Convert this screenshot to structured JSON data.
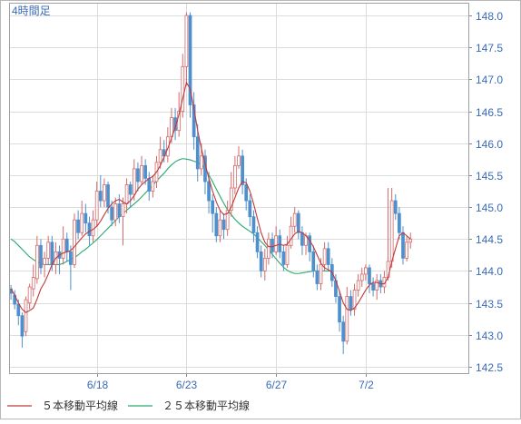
{
  "timeframe_label": "4時間足",
  "legend": [
    {
      "label": "５本移動平均線",
      "color": "#c0393b"
    },
    {
      "label": "２５本移動平均線",
      "color": "#2aa870"
    }
  ],
  "colors": {
    "up": "#d36a6a",
    "down": "#4f90cc",
    "ma5": "#c0393b",
    "ma25": "#2aa870",
    "grid": "#dcdcdc",
    "label": "#3a6ab5"
  },
  "chart_data": {
    "type": "candlestick",
    "title": "",
    "xlabel": "",
    "ylabel": "",
    "ylim": [
      142.4,
      148.2
    ],
    "y_ticks": [
      142.5,
      143.0,
      143.5,
      144.0,
      144.5,
      145.0,
      145.5,
      146.0,
      146.5,
      147.0,
      147.5,
      148.0
    ],
    "x_ticks": [
      {
        "label": "6/18",
        "index": 23
      },
      {
        "label": "6/23",
        "index": 47
      },
      {
        "label": "6/27",
        "index": 71
      },
      {
        "label": "7/2",
        "index": 95
      }
    ],
    "n_bars": 123,
    "grid": true,
    "candles": [
      [
        143.72,
        143.65,
        143.78,
        143.55
      ],
      [
        143.62,
        143.48,
        143.7,
        143.4
      ],
      [
        143.48,
        143.3,
        143.55,
        143.15
      ],
      [
        143.3,
        142.98,
        143.35,
        142.8
      ],
      [
        143.05,
        143.55,
        143.6,
        142.98
      ],
      [
        143.5,
        143.75,
        143.8,
        143.4
      ],
      [
        143.72,
        143.9,
        144.1,
        143.6
      ],
      [
        143.88,
        144.4,
        144.55,
        143.8
      ],
      [
        144.4,
        144.05,
        144.5,
        143.95
      ],
      [
        144.1,
        144.2,
        144.3,
        143.9
      ],
      [
        144.2,
        144.45,
        144.55,
        144.1
      ],
      [
        144.45,
        144.1,
        144.55,
        144.0
      ],
      [
        144.1,
        144.3,
        144.45,
        143.95
      ],
      [
        144.3,
        144.2,
        144.4,
        143.95
      ],
      [
        144.2,
        144.5,
        144.7,
        144.1
      ],
      [
        144.5,
        144.3,
        144.6,
        144.15
      ],
      [
        144.3,
        144.1,
        144.4,
        143.7
      ],
      [
        144.1,
        144.8,
        144.9,
        144.05
      ],
      [
        144.8,
        144.6,
        144.95,
        144.5
      ],
      [
        144.6,
        144.9,
        145.1,
        144.55
      ],
      [
        144.9,
        144.75,
        145.05,
        144.6
      ],
      [
        144.75,
        144.55,
        144.85,
        144.4
      ],
      [
        144.55,
        144.8,
        144.95,
        144.45
      ],
      [
        144.8,
        145.25,
        145.4,
        144.7
      ],
      [
        145.25,
        145.1,
        145.5,
        145.0
      ],
      [
        145.1,
        145.35,
        145.45,
        145.0
      ],
      [
        145.35,
        145.0,
        145.4,
        144.9
      ],
      [
        145.0,
        144.8,
        145.1,
        144.7
      ],
      [
        144.8,
        145.05,
        145.15,
        144.7
      ],
      [
        145.05,
        144.85,
        145.2,
        144.75
      ],
      [
        144.85,
        145.05,
        145.15,
        144.4
      ],
      [
        145.05,
        145.35,
        145.45,
        144.9
      ],
      [
        145.35,
        145.2,
        145.4,
        145.0
      ],
      [
        145.2,
        145.6,
        145.75,
        145.1
      ],
      [
        145.6,
        145.4,
        145.7,
        145.25
      ],
      [
        145.4,
        145.65,
        145.8,
        145.35
      ],
      [
        145.65,
        145.45,
        145.75,
        145.35
      ],
      [
        145.45,
        145.25,
        145.55,
        145.1
      ],
      [
        145.25,
        145.4,
        145.5,
        145.15
      ],
      [
        145.4,
        145.7,
        145.8,
        145.3
      ],
      [
        145.7,
        145.9,
        146.1,
        145.6
      ],
      [
        145.9,
        145.8,
        146.05,
        145.7
      ],
      [
        145.8,
        146.1,
        146.25,
        145.7
      ],
      [
        146.1,
        146.4,
        146.55,
        146.0
      ],
      [
        146.4,
        146.2,
        146.55,
        146.05
      ],
      [
        146.2,
        146.5,
        146.8,
        146.1
      ],
      [
        146.5,
        147.2,
        147.4,
        146.4
      ],
      [
        147.2,
        148.0,
        148.05,
        146.9
      ],
      [
        148.0,
        146.6,
        148.05,
        146.4
      ],
      [
        146.6,
        146.1,
        146.8,
        145.9
      ],
      [
        146.1,
        145.6,
        146.3,
        145.4
      ],
      [
        145.6,
        145.8,
        146.0,
        145.5
      ],
      [
        145.8,
        145.4,
        145.9,
        145.2
      ],
      [
        145.4,
        145.1,
        145.55,
        144.9
      ],
      [
        145.1,
        144.9,
        145.2,
        144.6
      ],
      [
        144.9,
        144.55,
        145.0,
        144.45
      ],
      [
        144.55,
        144.8,
        144.95,
        144.45
      ],
      [
        144.8,
        144.65,
        144.9,
        144.5
      ],
      [
        144.65,
        144.95,
        145.1,
        144.55
      ],
      [
        144.95,
        145.3,
        145.55,
        144.85
      ],
      [
        145.3,
        145.65,
        145.8,
        145.2
      ],
      [
        145.65,
        145.8,
        145.95,
        145.6
      ],
      [
        145.8,
        145.35,
        145.9,
        145.2
      ],
      [
        145.35,
        145.1,
        145.45,
        144.95
      ],
      [
        145.1,
        144.85,
        145.2,
        144.7
      ],
      [
        144.85,
        144.6,
        144.95,
        144.45
      ],
      [
        144.6,
        144.3,
        144.7,
        144.2
      ],
      [
        144.3,
        144.0,
        144.4,
        143.9
      ],
      [
        144.0,
        144.2,
        144.35,
        143.85
      ],
      [
        144.2,
        144.5,
        144.6,
        144.1
      ],
      [
        144.5,
        144.3,
        144.6,
        144.2
      ],
      [
        144.3,
        144.55,
        144.7,
        144.25
      ],
      [
        144.55,
        144.3,
        144.65,
        144.2
      ],
      [
        144.3,
        144.1,
        144.4,
        144.0
      ],
      [
        144.1,
        144.4,
        144.55,
        144.05
      ],
      [
        144.4,
        144.7,
        144.85,
        144.35
      ],
      [
        144.7,
        144.9,
        145.0,
        144.6
      ],
      [
        144.9,
        144.6,
        144.95,
        144.5
      ],
      [
        144.6,
        144.4,
        144.7,
        144.25
      ],
      [
        144.4,
        144.55,
        144.6,
        144.25
      ],
      [
        144.55,
        144.3,
        144.6,
        144.15
      ],
      [
        144.3,
        144.0,
        144.4,
        143.9
      ],
      [
        144.0,
        143.8,
        144.1,
        143.7
      ],
      [
        143.8,
        144.1,
        144.2,
        143.7
      ],
      [
        144.1,
        144.35,
        144.45,
        144.0
      ],
      [
        144.35,
        144.1,
        144.45,
        144.0
      ],
      [
        144.1,
        143.85,
        144.2,
        143.75
      ],
      [
        143.85,
        143.6,
        143.95,
        143.5
      ],
      [
        143.6,
        143.2,
        143.7,
        143.05
      ],
      [
        143.2,
        142.9,
        143.3,
        142.7
      ],
      [
        142.9,
        143.6,
        143.75,
        142.85
      ],
      [
        143.6,
        143.4,
        143.7,
        143.3
      ],
      [
        143.4,
        143.7,
        143.8,
        143.3
      ],
      [
        143.7,
        143.85,
        143.95,
        143.6
      ],
      [
        143.85,
        143.95,
        144.05,
        143.75
      ],
      [
        143.95,
        144.05,
        144.1,
        143.85
      ],
      [
        144.05,
        143.8,
        144.1,
        143.65
      ],
      [
        143.8,
        143.7,
        143.9,
        143.6
      ],
      [
        143.7,
        143.85,
        143.95,
        143.55
      ],
      [
        143.85,
        143.75,
        143.95,
        143.65
      ],
      [
        143.75,
        143.9,
        144.0,
        143.65
      ],
      [
        143.9,
        144.15,
        145.3,
        143.85
      ],
      [
        144.15,
        145.1,
        145.3,
        144.05
      ],
      [
        145.1,
        144.9,
        145.2,
        144.8
      ],
      [
        144.9,
        144.6,
        145.0,
        144.5
      ],
      [
        144.6,
        144.2,
        144.7,
        144.1
      ],
      [
        144.2,
        144.45,
        144.55,
        144.15
      ],
      [
        144.45,
        144.5,
        144.6,
        144.35
      ]
    ],
    "series": [
      {
        "name": "５本移動平均線",
        "values": [
          143.72,
          143.62,
          143.5,
          143.4,
          143.35,
          143.38,
          143.42,
          143.56,
          143.72,
          143.82,
          143.95,
          144.1,
          144.2,
          144.25,
          144.28,
          144.3,
          144.32,
          144.38,
          144.45,
          144.52,
          144.58,
          144.62,
          144.65,
          144.7,
          144.78,
          144.88,
          144.98,
          145.05,
          145.1,
          145.12,
          145.08,
          145.05,
          145.1,
          145.18,
          145.28,
          145.35,
          145.4,
          145.45,
          145.48,
          145.55,
          145.65,
          145.78,
          145.92,
          146.08,
          146.25,
          146.45,
          146.7,
          146.95,
          146.85,
          146.55,
          146.2,
          145.92,
          145.68,
          145.45,
          145.25,
          145.08,
          144.95,
          144.88,
          144.9,
          145.0,
          145.15,
          145.3,
          145.4,
          145.38,
          145.25,
          145.05,
          144.82,
          144.6,
          144.45,
          144.38,
          144.38,
          144.4,
          144.42,
          144.4,
          144.42,
          144.5,
          144.58,
          144.62,
          144.6,
          144.55,
          144.48,
          144.38,
          144.25,
          144.12,
          144.05,
          144.02,
          143.98,
          143.85,
          143.68,
          143.5,
          143.4,
          143.38,
          143.42,
          143.5,
          143.6,
          143.7,
          143.78,
          143.82,
          143.82,
          143.8,
          143.8,
          143.9,
          144.15,
          144.35,
          144.55,
          144.6,
          144.55,
          144.5
        ]
      },
      {
        "name": "２５本移動平均線",
        "values": [
          144.5,
          144.46,
          144.4,
          144.34,
          144.28,
          144.22,
          144.18,
          144.14,
          144.12,
          144.1,
          144.1,
          144.1,
          144.1,
          144.1,
          144.12,
          144.15,
          144.18,
          144.21,
          144.25,
          144.3,
          144.34,
          144.39,
          144.44,
          144.49,
          144.55,
          144.61,
          144.67,
          144.73,
          144.79,
          144.85,
          144.9,
          144.95,
          145.0,
          145.05,
          145.1,
          145.16,
          145.22,
          145.28,
          145.34,
          145.41,
          145.47,
          145.53,
          145.6,
          145.66,
          145.71,
          145.74,
          145.76,
          145.75,
          145.74,
          145.72,
          145.7,
          145.67,
          145.6,
          145.5,
          145.4,
          145.28,
          145.17,
          145.06,
          144.96,
          144.88,
          144.81,
          144.75,
          144.7,
          144.66,
          144.62,
          144.58,
          144.52,
          144.46,
          144.4,
          144.33,
          144.26,
          144.19,
          144.12,
          144.06,
          144.01,
          143.98,
          143.96,
          143.96,
          143.97,
          143.98,
          143.99,
          144.0,
          144.0,
          144.0,
          144.0,
          144.0,
          144.0
        ]
      }
    ]
  }
}
